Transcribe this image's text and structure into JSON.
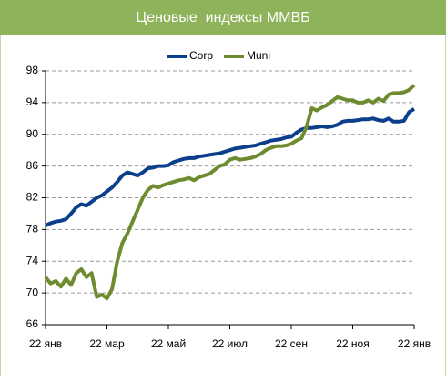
{
  "chart_data": {
    "type": "line",
    "title": "Ценовые  индексы ММВБ",
    "categories": [
      "22 янв",
      null,
      null,
      null,
      null,
      null,
      null,
      null,
      null,
      null,
      null,
      null,
      "22 мар",
      null,
      null,
      null,
      null,
      null,
      null,
      null,
      null,
      null,
      null,
      null,
      "22 май",
      null,
      null,
      null,
      null,
      null,
      null,
      null,
      null,
      null,
      null,
      null,
      "22 июл",
      null,
      null,
      null,
      null,
      null,
      null,
      null,
      null,
      null,
      null,
      null,
      "22 сен",
      null,
      null,
      null,
      null,
      null,
      null,
      null,
      null,
      null,
      null,
      null,
      "22 ноя",
      null,
      null,
      null,
      null,
      null,
      null,
      null,
      null,
      null,
      null,
      null,
      "22 янв"
    ],
    "series": [
      {
        "name": "Corp",
        "color": "#0b3f8c",
        "values": [
          78.5,
          78.8,
          79,
          79.1,
          79.3,
          80,
          80.8,
          81.2,
          81,
          81.5,
          82,
          82.3,
          82.8,
          83.3,
          84,
          84.8,
          85.2,
          85,
          84.8,
          85.2,
          85.7,
          85.8,
          86,
          86,
          86.1,
          86.5,
          86.7,
          86.9,
          87,
          87,
          87.2,
          87.3,
          87.4,
          87.5,
          87.6,
          87.8,
          88,
          88.2,
          88.3,
          88.4,
          88.5,
          88.6,
          88.8,
          89,
          89.2,
          89.3,
          89.4,
          89.6,
          89.7,
          90.2,
          90.6,
          90.8,
          90.8,
          90.9,
          91,
          90.9,
          91,
          91.2,
          91.6,
          91.7,
          91.7,
          91.8,
          91.9,
          91.9,
          92,
          91.8,
          91.7,
          92,
          91.6,
          91.6,
          91.7,
          92.8,
          93.2
        ]
      },
      {
        "name": "Muni",
        "color": "#6e8b2f",
        "values": [
          72,
          71.2,
          71.5,
          70.8,
          71.8,
          71,
          72.5,
          73,
          72,
          72.5,
          69.5,
          69.8,
          69.3,
          70.5,
          74,
          76.3,
          77.5,
          79,
          80.5,
          82,
          83,
          83.5,
          83.3,
          83.6,
          83.8,
          84,
          84.2,
          84.3,
          84.5,
          84.2,
          84.6,
          84.8,
          85,
          85.5,
          86,
          86.2,
          86.8,
          87,
          86.8,
          86.9,
          87,
          87.2,
          87.5,
          88,
          88.3,
          88.5,
          88.5,
          88.6,
          88.8,
          89.2,
          89.5,
          91,
          93.3,
          93,
          93.4,
          93.7,
          94.2,
          94.7,
          94.5,
          94.3,
          94.3,
          94,
          94,
          94.3,
          94,
          94.5,
          94.2,
          95,
          95.2,
          95.2,
          95.3,
          95.6,
          96.2
        ]
      }
    ],
    "ylim": [
      66,
      98
    ],
    "yticks": [
      66,
      70,
      74,
      78,
      82,
      86,
      90,
      94,
      98
    ],
    "grid": true,
    "legend": "top"
  }
}
